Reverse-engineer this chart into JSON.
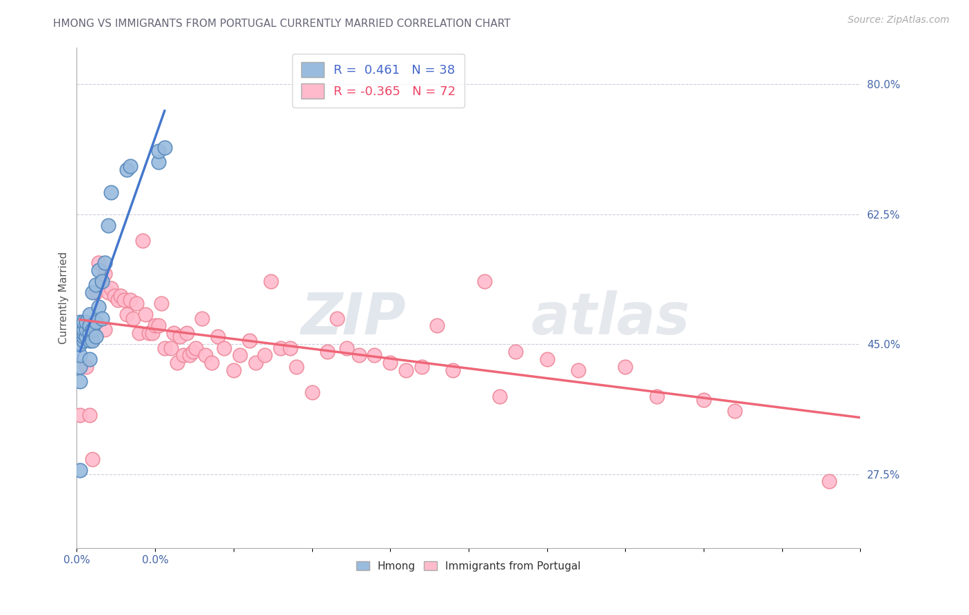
{
  "title": "HMONG VS IMMIGRANTS FROM PORTUGAL CURRENTLY MARRIED CORRELATION CHART",
  "source": "Source: ZipAtlas.com",
  "ylabel": "Currently Married",
  "xlim": [
    0.0,
    0.25
  ],
  "ylim": [
    0.175,
    0.85
  ],
  "xticks": [
    0.0,
    0.025,
    0.05,
    0.075,
    0.1,
    0.125,
    0.15,
    0.175,
    0.2,
    0.225,
    0.25
  ],
  "xticklabels_show": {
    "0.0": "0.0%"
  },
  "yticks_right": [
    0.275,
    0.45,
    0.625,
    0.8
  ],
  "yticklabels_right": [
    "27.5%",
    "45.0%",
    "62.5%",
    "80.0%"
  ],
  "hmong_color": "#99BBDD",
  "hmong_edge": "#5588BB",
  "portugal_color": "#FFBBCC",
  "portugal_edge": "#EE8899",
  "trend_hmong_solid": "#4477CC",
  "trend_hmong_dash": "#88AADD",
  "trend_portugal": "#EE6677",
  "hmong_R": 0.461,
  "hmong_N": 38,
  "portugal_R": -0.365,
  "portugal_N": 72,
  "legend_label_hmong": "Hmong",
  "legend_label_portugal": "Immigrants from Portugal",
  "watermark_zip": "ZIP",
  "watermark_atlas": "atlas",
  "hmong_x": [
    0.001,
    0.001,
    0.001,
    0.001,
    0.001,
    0.001,
    0.001,
    0.002,
    0.002,
    0.002,
    0.002,
    0.002,
    0.003,
    0.003,
    0.003,
    0.004,
    0.004,
    0.004,
    0.004,
    0.004,
    0.005,
    0.005,
    0.005,
    0.006,
    0.006,
    0.006,
    0.007,
    0.007,
    0.008,
    0.008,
    0.009,
    0.01,
    0.011,
    0.016,
    0.017,
    0.026,
    0.026,
    0.028
  ],
  "hmong_y": [
    0.28,
    0.4,
    0.42,
    0.435,
    0.45,
    0.47,
    0.48,
    0.455,
    0.46,
    0.465,
    0.47,
    0.48,
    0.46,
    0.47,
    0.48,
    0.43,
    0.455,
    0.465,
    0.475,
    0.49,
    0.455,
    0.47,
    0.52,
    0.46,
    0.48,
    0.53,
    0.5,
    0.55,
    0.485,
    0.535,
    0.56,
    0.61,
    0.655,
    0.685,
    0.69,
    0.695,
    0.71,
    0.715
  ],
  "portugal_x": [
    0.001,
    0.003,
    0.004,
    0.005,
    0.006,
    0.007,
    0.008,
    0.009,
    0.009,
    0.01,
    0.011,
    0.012,
    0.013,
    0.014,
    0.015,
    0.016,
    0.017,
    0.018,
    0.019,
    0.02,
    0.021,
    0.022,
    0.023,
    0.024,
    0.025,
    0.026,
    0.027,
    0.028,
    0.03,
    0.031,
    0.032,
    0.033,
    0.034,
    0.035,
    0.036,
    0.037,
    0.038,
    0.04,
    0.041,
    0.043,
    0.045,
    0.047,
    0.05,
    0.052,
    0.055,
    0.057,
    0.06,
    0.062,
    0.065,
    0.068,
    0.07,
    0.075,
    0.08,
    0.083,
    0.086,
    0.09,
    0.095,
    0.1,
    0.105,
    0.11,
    0.115,
    0.12,
    0.13,
    0.135,
    0.14,
    0.15,
    0.16,
    0.175,
    0.185,
    0.2,
    0.21,
    0.24
  ],
  "portugal_y": [
    0.355,
    0.42,
    0.355,
    0.295,
    0.52,
    0.56,
    0.535,
    0.47,
    0.545,
    0.52,
    0.525,
    0.515,
    0.51,
    0.515,
    0.51,
    0.49,
    0.51,
    0.485,
    0.505,
    0.465,
    0.59,
    0.49,
    0.465,
    0.465,
    0.475,
    0.475,
    0.505,
    0.445,
    0.445,
    0.465,
    0.425,
    0.46,
    0.435,
    0.465,
    0.435,
    0.44,
    0.445,
    0.485,
    0.435,
    0.425,
    0.46,
    0.445,
    0.415,
    0.435,
    0.455,
    0.425,
    0.435,
    0.535,
    0.445,
    0.445,
    0.42,
    0.385,
    0.44,
    0.485,
    0.445,
    0.435,
    0.435,
    0.425,
    0.415,
    0.42,
    0.475,
    0.415,
    0.535,
    0.38,
    0.44,
    0.43,
    0.415,
    0.42,
    0.38,
    0.375,
    0.36,
    0.265
  ]
}
